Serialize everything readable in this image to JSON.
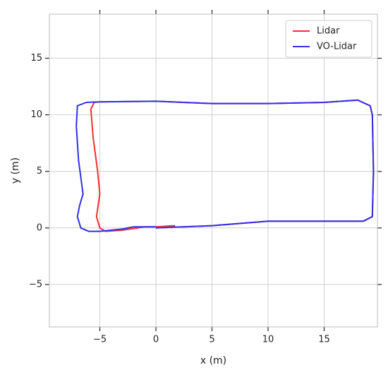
{
  "chart_data": {
    "type": "line",
    "x_label": "x (m)",
    "y_label": "y (m)",
    "xlim": [
      -9.5,
      19.75
    ],
    "ylim": [
      -8.75,
      18.9
    ],
    "xticks": [
      {
        "value": -5,
        "label": "−5"
      },
      0,
      5,
      10,
      15
    ],
    "yticks": [
      {
        "value": -5,
        "label": "−5"
      },
      0,
      5,
      10,
      15
    ],
    "grid": true,
    "legend": "upper right",
    "series": [
      {
        "name": "Lidar",
        "color": "#f03030",
        "x": [
          0,
          5,
          10,
          15,
          18.5,
          19.3,
          19.4,
          19.3,
          19.1,
          18,
          15,
          10,
          5,
          0,
          -5,
          -5.5,
          -5.8,
          -5.6,
          -5.2,
          -5.0,
          -5.3,
          -5.0,
          -4.5,
          -3,
          -1,
          0,
          1.7
        ],
        "values": [
          0,
          0.2,
          0.6,
          0.6,
          0.6,
          1,
          5,
          10,
          10.8,
          11.3,
          11.1,
          11,
          11,
          11.2,
          11.15,
          11.1,
          10.5,
          8,
          5,
          3,
          1,
          0,
          -0.3,
          -0.2,
          0.1,
          0.1,
          0.2
        ]
      },
      {
        "name": "VO-Lidar",
        "color": "#3030e8",
        "x": [
          0,
          5,
          10,
          15,
          18.5,
          19.3,
          19.4,
          19.3,
          19.1,
          18,
          15,
          10,
          5,
          0,
          -5,
          -6.2,
          -7,
          -7.1,
          -6.9,
          -6.5,
          -6.8,
          -7,
          -6.7,
          -6,
          -5,
          -3,
          -2,
          0
        ],
        "values": [
          0,
          0.2,
          0.6,
          0.6,
          0.6,
          1,
          5,
          10,
          10.8,
          11.3,
          11.1,
          11,
          11,
          11.2,
          11.15,
          11.1,
          10.8,
          9,
          6,
          3,
          2,
          1,
          0,
          -0.3,
          -0.3,
          -0.1,
          0.1,
          0.1
        ]
      }
    ]
  }
}
